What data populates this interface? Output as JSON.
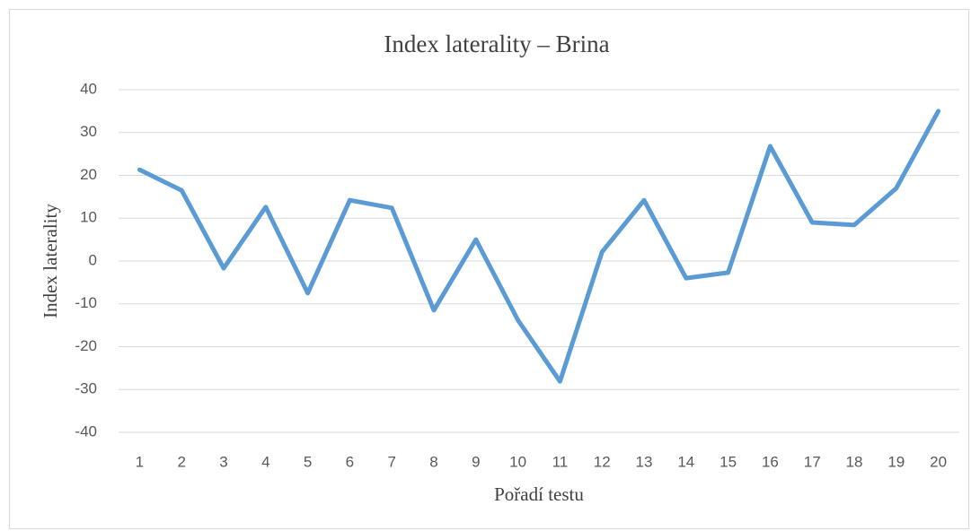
{
  "chart_data": {
    "type": "line",
    "title": "Index laterality – Brina",
    "x_label": "Pořadí testu",
    "y_label": "Index laterality",
    "categories": [
      "1",
      "2",
      "3",
      "4",
      "5",
      "6",
      "7",
      "8",
      "9",
      "10",
      "11",
      "12",
      "13",
      "14",
      "15",
      "16",
      "17",
      "18",
      "19",
      "20"
    ],
    "series": [
      {
        "name": "Index laterality",
        "color": "#5b9bd5",
        "values": [
          21.3,
          16.5,
          -1.7,
          12.6,
          -7.5,
          14.2,
          12.4,
          -11.5,
          5.0,
          -13.8,
          -28.1,
          2.1,
          14.2,
          -4.0,
          -2.7,
          26.8,
          9.0,
          8.4,
          17.0,
          35.0
        ]
      }
    ],
    "ylim": [
      -40,
      40
    ],
    "yticks": [
      -40,
      -30,
      -20,
      -10,
      0,
      10,
      20,
      30,
      40
    ],
    "grid": true
  }
}
